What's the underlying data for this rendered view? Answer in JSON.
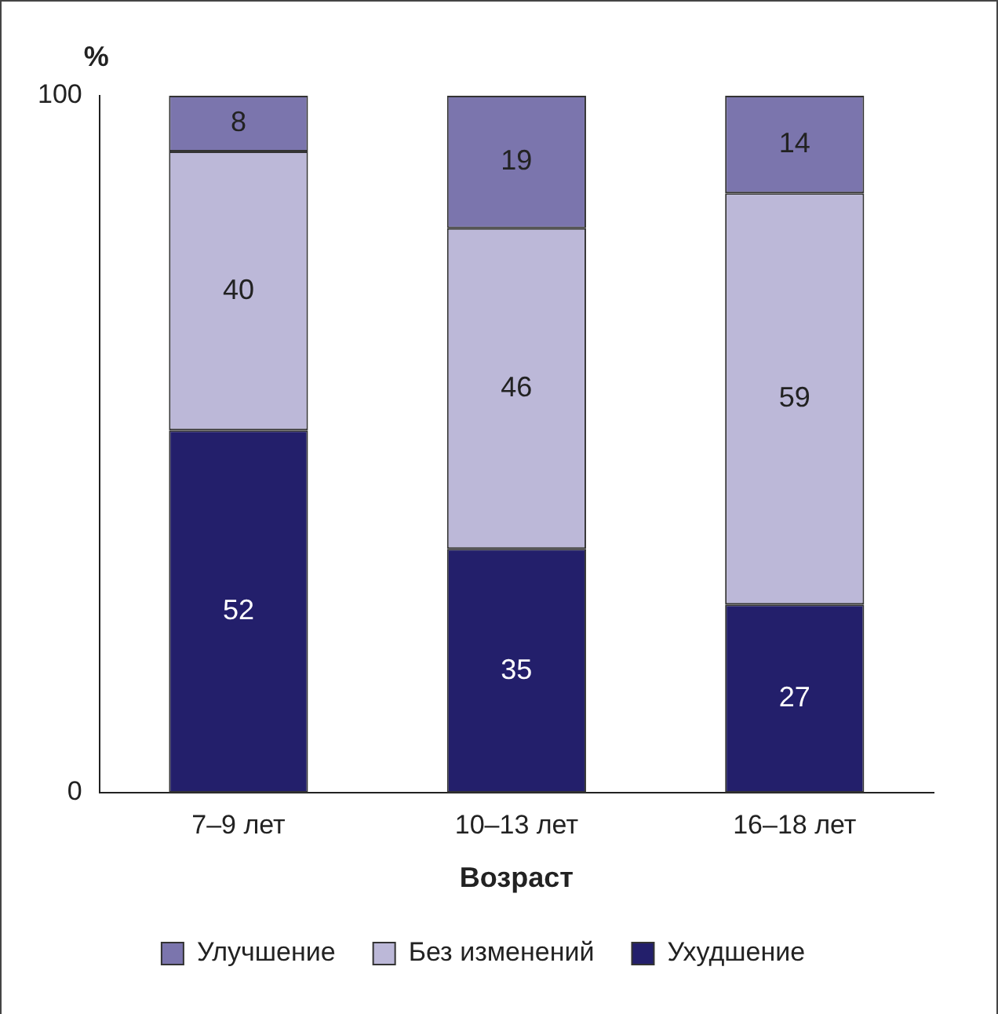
{
  "chart_data": {
    "type": "bar",
    "stacked": true,
    "xlabel": "Возраст",
    "ylabel": "%",
    "categories": [
      "7–9 лет",
      "10–13 лет",
      "16–18 лет"
    ],
    "series": [
      {
        "name": "Ухудшение",
        "color": "#231f6b",
        "values": [
          52,
          35,
          27
        ]
      },
      {
        "name": "Без изменений",
        "color": "#bcb8d8",
        "values": [
          40,
          46,
          59
        ]
      },
      {
        "name": "Улучшение",
        "color": "#7b75ad",
        "values": [
          8,
          19,
          14
        ]
      }
    ],
    "ylim": [
      0,
      100
    ],
    "yticks": [
      0,
      100
    ],
    "data_labels": true,
    "legend": "bottom",
    "grid": false
  }
}
